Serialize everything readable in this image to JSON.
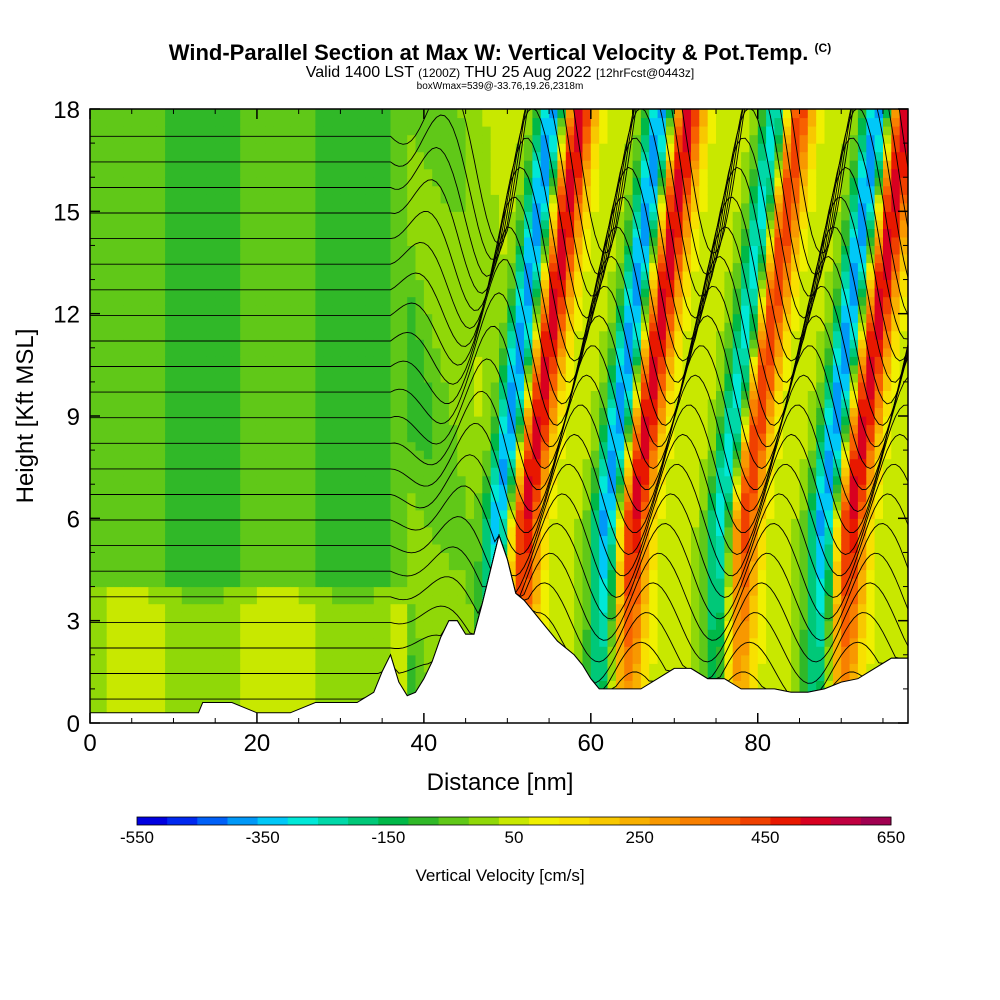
{
  "chart_data": {
    "type": "heatmap",
    "title": "Wind-Parallel Section at Max W: Vertical Velocity & Pot.Temp.",
    "title_units": "(C)",
    "subtitle_main": "Valid 1400 LST",
    "subtitle_utc": "(1200Z)",
    "subtitle_date": "THU 25 Aug 2022",
    "subtitle_fcst": "[12hrFcst@0443z]",
    "info": "boxWmax=539@-33.76,19.26,2318m",
    "xlabel": "Distance [nm]",
    "ylabel": "Height [Kft MSL]",
    "xlim": [
      0,
      98
    ],
    "ylim": [
      0,
      18
    ],
    "xticks": [
      0,
      20,
      40,
      60,
      80
    ],
    "yticks": [
      0,
      3,
      6,
      9,
      12,
      15,
      18
    ],
    "colorbar": {
      "title": "Vertical Velocity [cm/s]",
      "labels": [
        -550,
        -350,
        -150,
        50,
        250,
        450,
        650
      ],
      "levels": [
        -550,
        -500,
        -450,
        -400,
        -350,
        -300,
        -250,
        -200,
        -150,
        -100,
        -50,
        0,
        50,
        100,
        150,
        200,
        250,
        300,
        350,
        400,
        450,
        500,
        550,
        600,
        650
      ],
      "colors": [
        "#0000e0",
        "#0028f0",
        "#0060f8",
        "#0098f8",
        "#00c8f8",
        "#00e8d8",
        "#00d8a8",
        "#00c878",
        "#00b848",
        "#30b828",
        "#60c818",
        "#90d808",
        "#c8e800",
        "#f0f000",
        "#f8e000",
        "#f8c800",
        "#f8b000",
        "#f89800",
        "#f88000",
        "#f86000",
        "#f04000",
        "#e81800",
        "#d80020",
        "#c00040",
        "#a00050"
      ]
    },
    "terrain_profile": {
      "x": [
        0,
        13,
        13.5,
        17,
        20,
        24,
        27,
        32,
        34,
        35,
        36,
        37,
        38,
        39,
        40,
        41,
        42,
        43,
        44,
        45,
        46,
        47,
        48,
        49,
        50,
        51,
        52,
        53,
        54,
        55,
        56,
        57,
        58,
        59,
        60,
        61,
        62,
        64,
        66,
        68,
        70,
        72,
        74,
        76,
        78,
        80,
        82,
        84,
        86,
        88,
        90,
        92,
        94,
        96,
        98
      ],
      "height_kft": [
        0.3,
        0.3,
        0.6,
        0.6,
        0.3,
        0.3,
        0.6,
        0.6,
        0.9,
        1.5,
        2.0,
        1.2,
        0.8,
        0.9,
        1.3,
        1.8,
        2.5,
        3.0,
        3.0,
        2.6,
        2.6,
        3.5,
        4.5,
        5.5,
        4.8,
        3.8,
        3.6,
        3.3,
        3.0,
        2.7,
        2.4,
        2.2,
        2.0,
        1.7,
        1.3,
        1.0,
        1.0,
        1.0,
        1.0,
        1.3,
        1.6,
        1.6,
        1.3,
        1.3,
        1.0,
        1.0,
        1.0,
        0.9,
        0.9,
        1.0,
        1.2,
        1.3,
        1.6,
        1.9,
        1.9
      ]
    },
    "velocity_field": {
      "description_x_nm_centers": {
        "updrafts": [
          52,
          65,
          78,
          91
        ],
        "downdrafts": [
          49,
          62,
          76,
          88
        ]
      },
      "peak_updraft_cm_s": 539,
      "min_downdraft_cm_s": -500,
      "background_cm_s": -60
    },
    "isentrope_levels_C": [
      24,
      26,
      28,
      30,
      32,
      34,
      36,
      38,
      40,
      42,
      44,
      46,
      48,
      50,
      52,
      54,
      56,
      58,
      60,
      62,
      64,
      66,
      68
    ]
  }
}
